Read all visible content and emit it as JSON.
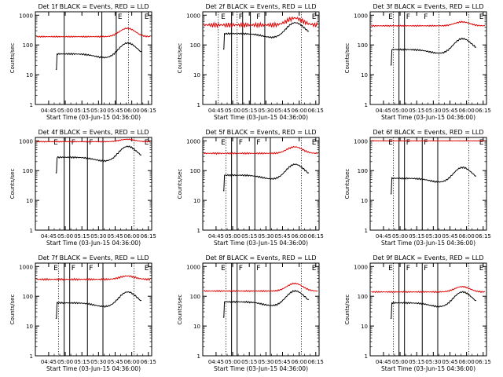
{
  "colors": {
    "events": "#000000",
    "lld": "#e00000",
    "axes": "#000000"
  },
  "common": {
    "xlabel": "Start Time (03-Jun-15 04:36:00)",
    "ylabel": "Counts/sec",
    "x_ticks": [
      "04:45",
      "05:00",
      "05:15",
      "05:30",
      "05:45",
      "06:00",
      "06:15"
    ],
    "y_ticks": [
      "1",
      "10",
      "100",
      "1000"
    ],
    "xlim_minutes": [
      -3,
      102
    ],
    "ylim": [
      1,
      1300
    ],
    "yscale": "log"
  },
  "chart_data": [
    {
      "type": "line",
      "title": "Det 1f BLACK = Events, RED = LLD",
      "events_base": 50,
      "lld_base": 190,
      "events_start": 15,
      "lld_bump": 1.9,
      "lld_noise": 0.05,
      "dotted_x": [
        81
      ],
      "solid_x": [
        23,
        57,
        70,
        93
      ],
      "markers": [
        {
          "label": "E",
          "x": 70
        },
        {
          "label": "E",
          "x": 94
        }
      ]
    },
    {
      "type": "line",
      "title": "Det 2f BLACK = Events, RED = LLD",
      "events_base": 240,
      "lld_base": 470,
      "events_start": 15,
      "lld_bump": 1.7,
      "lld_noise": 0.18,
      "dotted_x": [
        11,
        28,
        86
      ],
      "solid_x": [
        23,
        33,
        40,
        53
      ],
      "markers": [
        {
          "label": "E",
          "x": 12
        },
        {
          "label": "F",
          "x": 28
        },
        {
          "label": "F",
          "x": 44
        },
        {
          "label": "E",
          "x": 94
        }
      ]
    },
    {
      "type": "line",
      "title": "Det 3f BLACK = Events, RED = LLD",
      "events_base": 70,
      "lld_base": 440,
      "events_start": 15,
      "lld_bump": 1.35,
      "lld_noise": 0.05,
      "dotted_x": [
        18,
        59,
        86
      ],
      "solid_x": [
        23,
        28
      ],
      "markers": [
        {
          "label": "E",
          "x": 12
        },
        {
          "label": "F",
          "x": 28
        },
        {
          "label": "F",
          "x": 44
        },
        {
          "label": "E",
          "x": 94
        }
      ]
    },
    {
      "type": "line",
      "title": "Det 4f BLACK = Events, RED = LLD",
      "events_base": 280,
      "lld_base": 940,
      "events_start": 15,
      "lld_bump": 1.2,
      "lld_noise": 0.04,
      "dotted_x": [
        86
      ],
      "solid_x": [
        23,
        28,
        44,
        58
      ],
      "markers": [
        {
          "label": "E",
          "x": 12
        },
        {
          "label": "F",
          "x": 28
        },
        {
          "label": "F",
          "x": 44
        },
        {
          "label": "E",
          "x": 94
        }
      ]
    },
    {
      "type": "line",
      "title": "Det 5f BLACK = Events, RED = LLD",
      "events_base": 70,
      "lld_base": 380,
      "events_start": 15,
      "lld_bump": 1.65,
      "lld_noise": 0.06,
      "dotted_x": [
        18,
        86
      ],
      "solid_x": [
        23,
        28,
        44,
        58
      ],
      "markers": [
        {
          "label": "E",
          "x": 12
        },
        {
          "label": "F",
          "x": 28
        },
        {
          "label": "F",
          "x": 44
        },
        {
          "label": "E",
          "x": 94
        }
      ]
    },
    {
      "type": "line",
      "title": "Det 6f BLACK = Events, RED = LLD",
      "events_base": 55,
      "lld_base": 1000,
      "events_start": 15,
      "lld_bump": 1.0,
      "lld_noise": 0.02,
      "dotted_x": [
        18,
        86
      ],
      "solid_x": [
        23,
        28,
        44,
        58
      ],
      "markers": [
        {
          "label": "E",
          "x": 12
        },
        {
          "label": "F",
          "x": 28
        },
        {
          "label": "F",
          "x": 44
        },
        {
          "label": "E",
          "x": 94
        }
      ]
    },
    {
      "type": "line",
      "title": "Det 7f BLACK = Events, RED = LLD",
      "events_base": 60,
      "lld_base": 370,
      "events_start": 15,
      "lld_bump": 1.3,
      "lld_noise": 0.07,
      "dotted_x": [
        18,
        86
      ],
      "solid_x": [
        23,
        28,
        44,
        58
      ],
      "markers": [
        {
          "label": "E",
          "x": 12
        },
        {
          "label": "F",
          "x": 28
        },
        {
          "label": "F",
          "x": 44
        },
        {
          "label": "E",
          "x": 94
        }
      ]
    },
    {
      "type": "line",
      "title": "Det 8f BLACK = Events, RED = LLD",
      "events_base": 65,
      "lld_base": 150,
      "events_start": 15,
      "lld_bump": 1.8,
      "lld_noise": 0.05,
      "dotted_x": [
        18,
        86
      ],
      "solid_x": [
        23,
        28,
        44,
        58
      ],
      "markers": [
        {
          "label": "E",
          "x": 12
        },
        {
          "label": "F",
          "x": 28
        },
        {
          "label": "F",
          "x": 44
        },
        {
          "label": "E",
          "x": 94
        }
      ]
    },
    {
      "type": "line",
      "title": "Det 9f BLACK = Events, RED = LLD",
      "events_base": 60,
      "lld_base": 140,
      "events_start": 15,
      "lld_bump": 1.5,
      "lld_noise": 0.05,
      "dotted_x": [
        18,
        86
      ],
      "solid_x": [
        23,
        28,
        44,
        58
      ],
      "markers": [
        {
          "label": "E",
          "x": 12
        },
        {
          "label": "F",
          "x": 28
        },
        {
          "label": "F",
          "x": 44
        },
        {
          "label": "E",
          "x": 94
        }
      ]
    }
  ]
}
